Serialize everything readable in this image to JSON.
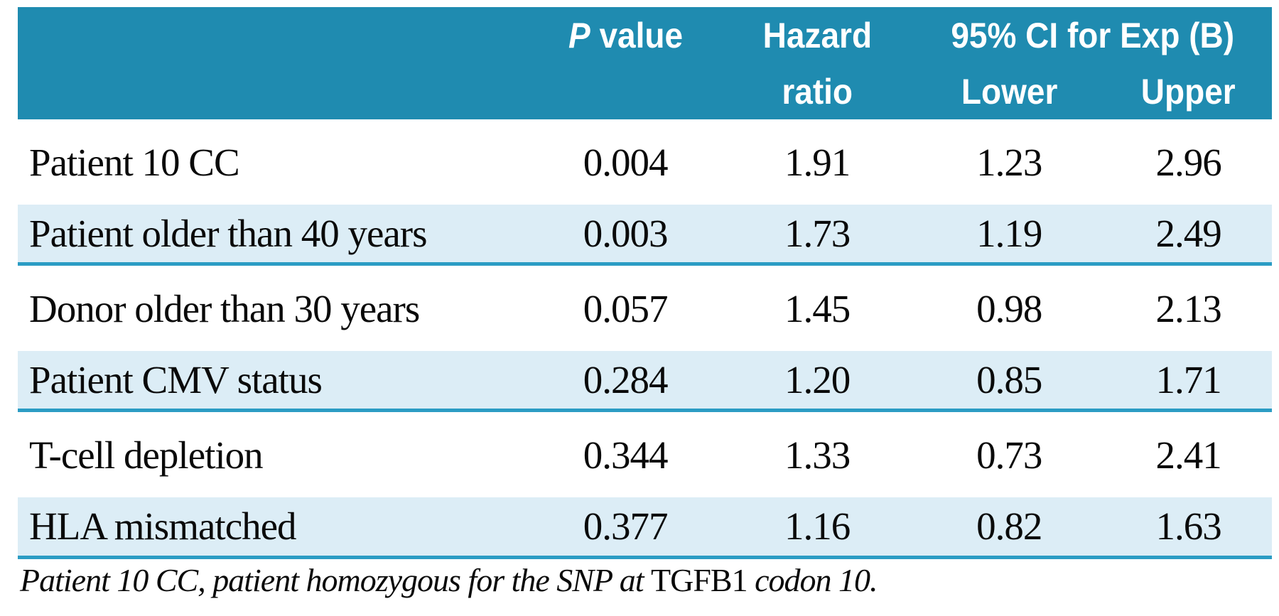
{
  "table": {
    "header": {
      "p_value_italic": "P",
      "p_value_rest": " value",
      "hazard_line1": "Hazard",
      "hazard_line2": "ratio",
      "ci_group": "95% CI for Exp (B)",
      "ci_lower": "Lower",
      "ci_upper": "Upper"
    },
    "rows": [
      {
        "label": "Patient 10 CC",
        "p_value": "0.004",
        "hazard_ratio": "1.91",
        "ci_lower": "1.23",
        "ci_upper": "2.96"
      },
      {
        "label": "Patient older than 40 years",
        "p_value": "0.003",
        "hazard_ratio": "1.73",
        "ci_lower": "1.19",
        "ci_upper": "2.49"
      },
      {
        "label": "Donor older than 30 years",
        "p_value": "0.057",
        "hazard_ratio": "1.45",
        "ci_lower": "0.98",
        "ci_upper": "2.13"
      },
      {
        "label": "Patient CMV status",
        "p_value": "0.284",
        "hazard_ratio": "1.20",
        "ci_lower": "0.85",
        "ci_upper": "1.71"
      },
      {
        "label": "T-cell depletion",
        "p_value": "0.344",
        "hazard_ratio": "1.33",
        "ci_lower": "0.73",
        "ci_upper": "2.41"
      },
      {
        "label": "HLA mismatched",
        "p_value": "0.377",
        "hazard_ratio": "1.16",
        "ci_lower": "0.82",
        "ci_upper": "1.63"
      }
    ],
    "footnote": {
      "italic_start": "Patient 10 CC, patient homozygous for the SNP at ",
      "gene": "TGFB1",
      "italic_end": " codon 10."
    }
  },
  "colors": {
    "header_bg": "#1f8bb0",
    "row_alt_bg": "#dcedf6",
    "separator": "#2b9cc4",
    "header_text": "#ffffff",
    "body_text": "#0a0a0a"
  }
}
